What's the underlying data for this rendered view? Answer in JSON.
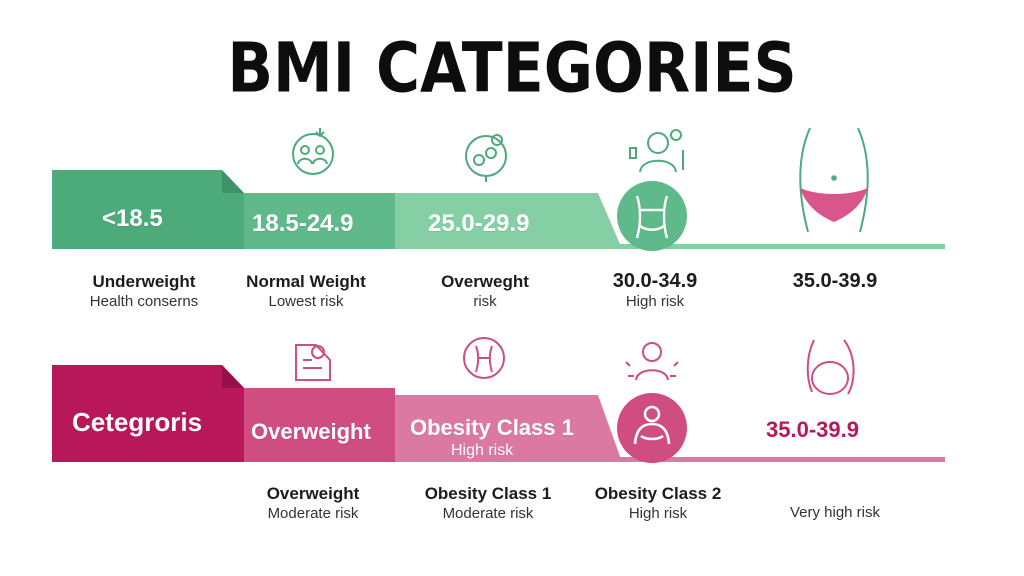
{
  "title": "BMI CATEGORIES",
  "colors": {
    "green_dark": "#4daa7b",
    "green_mid": "#5fb98a",
    "green_light": "#86cfa5",
    "pink_dark": "#b8185a",
    "pink_mid": "#cf4d80",
    "pink_light": "#dc79a2"
  },
  "top_band": {
    "segments": [
      "<18.5",
      "18.5-24.9",
      "25.0-29.9"
    ]
  },
  "top_labels": [
    {
      "title": "Underweight",
      "sub": "Health conserns"
    },
    {
      "title": "Normal Weight",
      "sub": "Lowest risk"
    },
    {
      "title": "Overweght",
      "sub": "risk"
    },
    {
      "title": "30.0-34.9",
      "sub": "High risk"
    },
    {
      "title": "35.0-39.9"
    }
  ],
  "bottom_band": {
    "segments": [
      {
        "title": "Cetegroris"
      },
      {
        "title": "Overweight"
      },
      {
        "title": "Obesity Class 1",
        "sub": "High risk"
      }
    ],
    "range": "35.0-39.9"
  },
  "bottom_labels": [
    {
      "title": "Overweight",
      "sub": "Moderate risk"
    },
    {
      "title": "Obesity Class 1",
      "sub": "Moderate risk"
    },
    {
      "title": "Obesity Class 2",
      "sub": "High risk"
    },
    {
      "sub": "Very high risk"
    }
  ],
  "icons": [
    "group-icon",
    "health-balance-icon",
    "person-icon",
    "waist-icon",
    "scale-check-icon",
    "belly-icon",
    "stressed-person-icon",
    "round-belly-icon"
  ]
}
